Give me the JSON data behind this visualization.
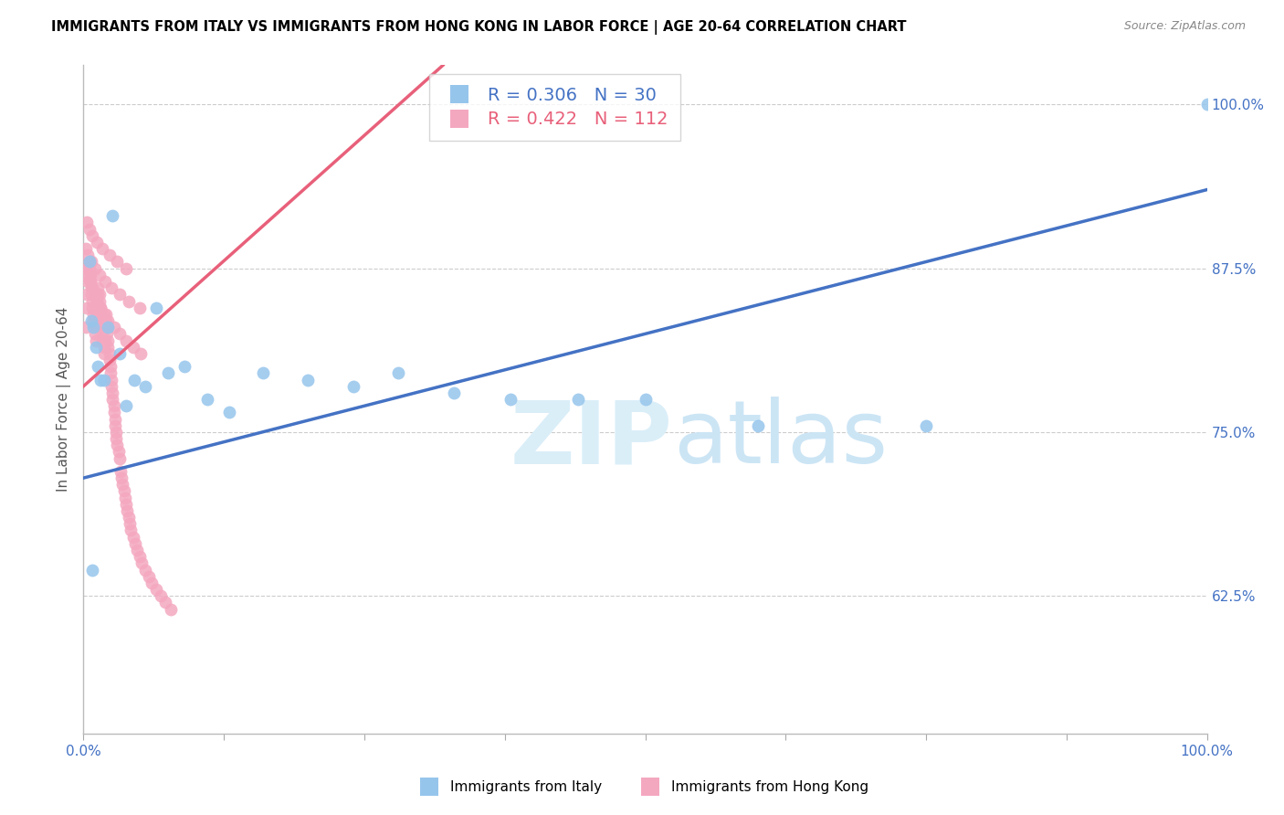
{
  "title": "IMMIGRANTS FROM ITALY VS IMMIGRANTS FROM HONG KONG IN LABOR FORCE | AGE 20-64 CORRELATION CHART",
  "source": "Source: ZipAtlas.com",
  "ylabel": "In Labor Force | Age 20-64",
  "xlim": [
    0.0,
    1.0
  ],
  "ylim": [
    0.52,
    1.03
  ],
  "yticks": [
    0.625,
    0.75,
    0.875,
    1.0
  ],
  "ytick_labels": [
    "62.5%",
    "75.0%",
    "87.5%",
    "100.0%"
  ],
  "italy_color": "#96c5ec",
  "hk_color": "#f4a8c0",
  "italy_line_color": "#4472c4",
  "hk_line_color": "#e8607a",
  "italy_R": 0.306,
  "italy_N": 30,
  "hk_R": 0.422,
  "hk_N": 112,
  "italy_line_x0": 0.0,
  "italy_line_y0": 0.715,
  "italy_line_x1": 1.0,
  "italy_line_y1": 0.935,
  "hk_line_x0": 0.0,
  "hk_line_y0": 0.785,
  "hk_line_x1": 0.32,
  "hk_line_y1": 1.03,
  "italy_x": [
    0.005,
    0.007,
    0.009,
    0.011,
    0.013,
    0.015,
    0.018,
    0.022,
    0.026,
    0.032,
    0.038,
    0.045,
    0.055,
    0.065,
    0.075,
    0.09,
    0.11,
    0.13,
    0.16,
    0.2,
    0.24,
    0.28,
    0.33,
    0.38,
    0.44,
    0.5,
    0.6,
    0.75,
    1.0,
    0.008
  ],
  "italy_y": [
    0.88,
    0.835,
    0.83,
    0.815,
    0.8,
    0.79,
    0.79,
    0.83,
    0.915,
    0.81,
    0.77,
    0.79,
    0.785,
    0.845,
    0.795,
    0.8,
    0.775,
    0.765,
    0.795,
    0.79,
    0.785,
    0.795,
    0.78,
    0.775,
    0.775,
    0.775,
    0.755,
    0.755,
    1.0,
    0.645
  ],
  "hk_x": [
    0.002,
    0.003,
    0.003,
    0.004,
    0.004,
    0.005,
    0.005,
    0.006,
    0.006,
    0.007,
    0.007,
    0.008,
    0.008,
    0.009,
    0.009,
    0.01,
    0.01,
    0.011,
    0.011,
    0.012,
    0.012,
    0.013,
    0.013,
    0.014,
    0.014,
    0.015,
    0.015,
    0.016,
    0.016,
    0.017,
    0.017,
    0.018,
    0.018,
    0.019,
    0.019,
    0.02,
    0.02,
    0.021,
    0.021,
    0.022,
    0.022,
    0.023,
    0.023,
    0.024,
    0.024,
    0.025,
    0.025,
    0.026,
    0.026,
    0.027,
    0.027,
    0.028,
    0.028,
    0.029,
    0.029,
    0.03,
    0.031,
    0.032,
    0.033,
    0.034,
    0.035,
    0.036,
    0.037,
    0.038,
    0.039,
    0.04,
    0.041,
    0.042,
    0.044,
    0.046,
    0.048,
    0.05,
    0.052,
    0.055,
    0.058,
    0.061,
    0.065,
    0.069,
    0.073,
    0.078,
    0.003,
    0.004,
    0.006,
    0.008,
    0.01,
    0.012,
    0.015,
    0.018,
    0.022,
    0.027,
    0.032,
    0.038,
    0.044,
    0.051,
    0.002,
    0.004,
    0.007,
    0.01,
    0.014,
    0.019,
    0.025,
    0.032,
    0.04,
    0.05,
    0.003,
    0.005,
    0.008,
    0.012,
    0.017,
    0.023,
    0.03,
    0.038
  ],
  "hk_y": [
    0.83,
    0.845,
    0.855,
    0.865,
    0.875,
    0.88,
    0.875,
    0.87,
    0.865,
    0.86,
    0.855,
    0.85,
    0.845,
    0.84,
    0.835,
    0.83,
    0.825,
    0.82,
    0.83,
    0.84,
    0.85,
    0.855,
    0.86,
    0.855,
    0.85,
    0.845,
    0.84,
    0.835,
    0.83,
    0.825,
    0.82,
    0.815,
    0.81,
    0.82,
    0.83,
    0.84,
    0.835,
    0.83,
    0.825,
    0.82,
    0.815,
    0.81,
    0.805,
    0.8,
    0.795,
    0.79,
    0.785,
    0.78,
    0.775,
    0.77,
    0.765,
    0.76,
    0.755,
    0.75,
    0.745,
    0.74,
    0.735,
    0.73,
    0.72,
    0.715,
    0.71,
    0.705,
    0.7,
    0.695,
    0.69,
    0.685,
    0.68,
    0.675,
    0.67,
    0.665,
    0.66,
    0.655,
    0.65,
    0.645,
    0.64,
    0.635,
    0.63,
    0.625,
    0.62,
    0.615,
    0.875,
    0.87,
    0.865,
    0.86,
    0.855,
    0.85,
    0.845,
    0.84,
    0.835,
    0.83,
    0.825,
    0.82,
    0.815,
    0.81,
    0.89,
    0.885,
    0.88,
    0.875,
    0.87,
    0.865,
    0.86,
    0.855,
    0.85,
    0.845,
    0.91,
    0.905,
    0.9,
    0.895,
    0.89,
    0.885,
    0.88,
    0.875
  ]
}
